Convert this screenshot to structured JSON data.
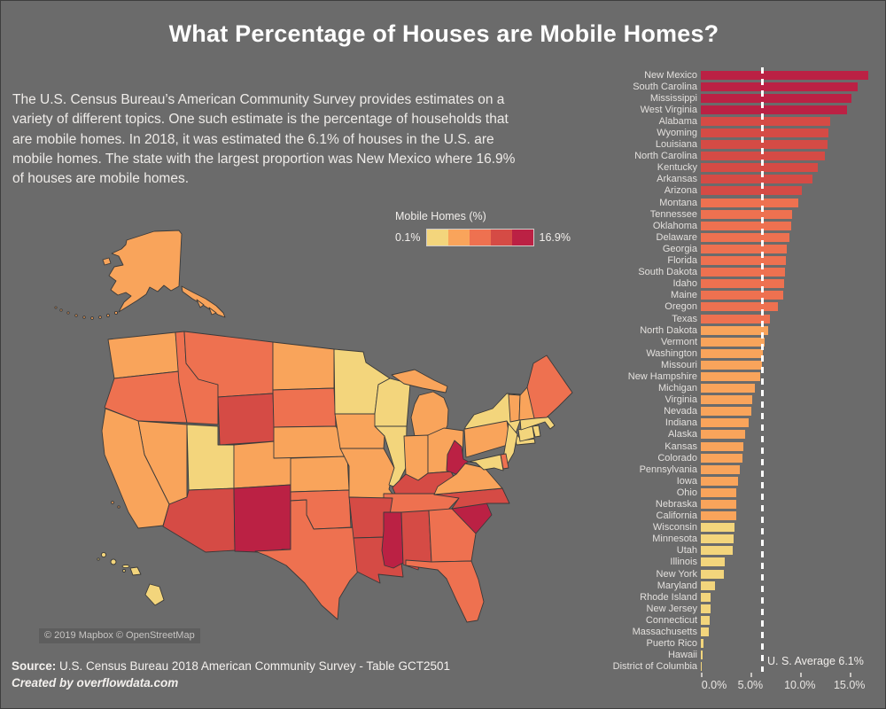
{
  "page": {
    "title": "What Percentage of Houses are Mobile Homes?",
    "description": "The U.S. Census Bureau’s American Community Survey provides estimates on a variety of different topics. One such estimate is the percentage of households that are mobile homes. In 2018, it was estimated the 6.1% of houses in the U.S. are mobile homes. The state with the largest proportion was New Mexico where 16.9% of houses are mobile homes.",
    "background": "#6B6B6B"
  },
  "legend": {
    "title": "Mobile Homes (%)",
    "min_label": "0.1%",
    "max_label": "16.9%"
  },
  "color_scale": {
    "bins": [
      "#F3D57C",
      "#F9A45B",
      "#EE7150",
      "#D54B45",
      "#BB2144"
    ],
    "domain": [
      0.1,
      16.9
    ]
  },
  "map": {
    "attribution": "© 2019 Mapbox © OpenStreetMap"
  },
  "chart_data": {
    "type": "bar",
    "orientation": "horizontal",
    "title": "",
    "xlabel": "",
    "ylabel": "",
    "xlim": [
      0,
      17.5
    ],
    "grid": false,
    "legend_position": "none",
    "categories": [
      "New Mexico",
      "South Carolina",
      "Mississippi",
      "West Virginia",
      "Alabama",
      "Wyoming",
      "Louisiana",
      "North Carolina",
      "Kentucky",
      "Arkansas",
      "Arizona",
      "Montana",
      "Tennessee",
      "Oklahoma",
      "Delaware",
      "Georgia",
      "Florida",
      "South Dakota",
      "Idaho",
      "Maine",
      "Oregon",
      "Texas",
      "North Dakota",
      "Vermont",
      "Washington",
      "Missouri",
      "New Hampshire",
      "Michigan",
      "Virginia",
      "Nevada",
      "Indiana",
      "Alaska",
      "Kansas",
      "Colorado",
      "Pennsylvania",
      "Iowa",
      "Ohio",
      "Nebraska",
      "California",
      "Wisconsin",
      "Minnesota",
      "Utah",
      "Illinois",
      "New York",
      "Maryland",
      "Rhode Island",
      "New Jersey",
      "Connecticut",
      "Massachusetts",
      "Puerto Rico",
      "Hawaii",
      "District of Columbia"
    ],
    "values": [
      16.9,
      15.8,
      15.2,
      14.8,
      13.1,
      12.9,
      12.8,
      12.5,
      11.8,
      11.3,
      10.2,
      9.8,
      9.2,
      9.1,
      8.9,
      8.7,
      8.6,
      8.5,
      8.4,
      8.3,
      7.8,
      7.0,
      6.8,
      6.4,
      6.3,
      6.2,
      6.0,
      5.5,
      5.2,
      5.1,
      4.8,
      4.5,
      4.3,
      4.2,
      3.9,
      3.8,
      3.6,
      3.6,
      3.6,
      3.4,
      3.3,
      3.2,
      2.4,
      2.3,
      1.4,
      1.0,
      1.0,
      0.9,
      0.8,
      0.3,
      0.2,
      0.1
    ],
    "x_ticks": [
      {
        "value": 0,
        "label": "0.0%"
      },
      {
        "value": 5,
        "label": "5.0%"
      },
      {
        "value": 10,
        "label": "10.0%"
      },
      {
        "value": 15,
        "label": "15.0%"
      }
    ],
    "reference_line": {
      "value": 6.1,
      "label": "U. S. Average 6.1%"
    }
  },
  "footer": {
    "source_label": "Source:",
    "source_text": " U.S. Census Bureau 2018 American Community Survey - Table GCT2501",
    "credit": "Created by overflowdata.com"
  }
}
